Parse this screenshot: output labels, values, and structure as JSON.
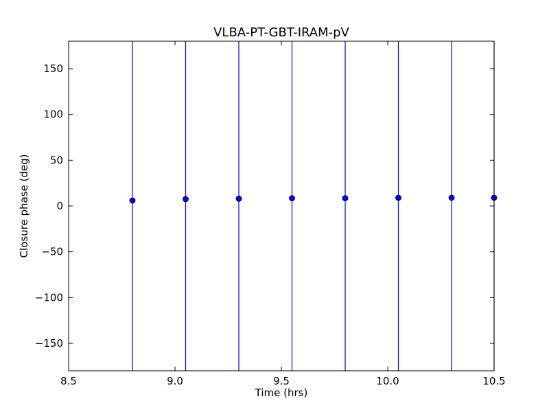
{
  "chart_data": {
    "type": "scatter",
    "title": "VLBA-PT-GBT-IRAM-pV",
    "xlabel": "Time (hrs)",
    "ylabel": "Closure phase (deg)",
    "xlim": [
      8.5,
      10.5
    ],
    "ylim": [
      -180,
      180
    ],
    "x_ticks": [
      8.5,
      9.0,
      9.5,
      10.0,
      10.5
    ],
    "x_tick_labels": [
      "8.5",
      "9.0",
      "9.5",
      "10.0",
      "10.5"
    ],
    "y_ticks": [
      150,
      100,
      50,
      0,
      -50,
      -100,
      -150
    ],
    "y_tick_labels": [
      "150",
      "100",
      "50",
      "0",
      "−50",
      "−100",
      "−150"
    ],
    "grid": false,
    "legend": false,
    "marker_color": "#0000ff",
    "errorbar_color": "#0000ff",
    "points": [
      {
        "x": 8.8,
        "y": 6,
        "err_low": -180,
        "err_high": 180
      },
      {
        "x": 9.05,
        "y": 7.5,
        "err_low": -180,
        "err_high": 180
      },
      {
        "x": 9.3,
        "y": 8,
        "err_low": -180,
        "err_high": 180
      },
      {
        "x": 9.55,
        "y": 8.5,
        "err_low": -180,
        "err_high": 180
      },
      {
        "x": 9.8,
        "y": 8.5,
        "err_low": -180,
        "err_high": 180
      },
      {
        "x": 10.05,
        "y": 9,
        "err_low": -180,
        "err_high": 180
      },
      {
        "x": 10.3,
        "y": 9,
        "err_low": -180,
        "err_high": 180
      },
      {
        "x": 10.5,
        "y": 9,
        "err_low": -180,
        "err_high": 180
      }
    ]
  }
}
